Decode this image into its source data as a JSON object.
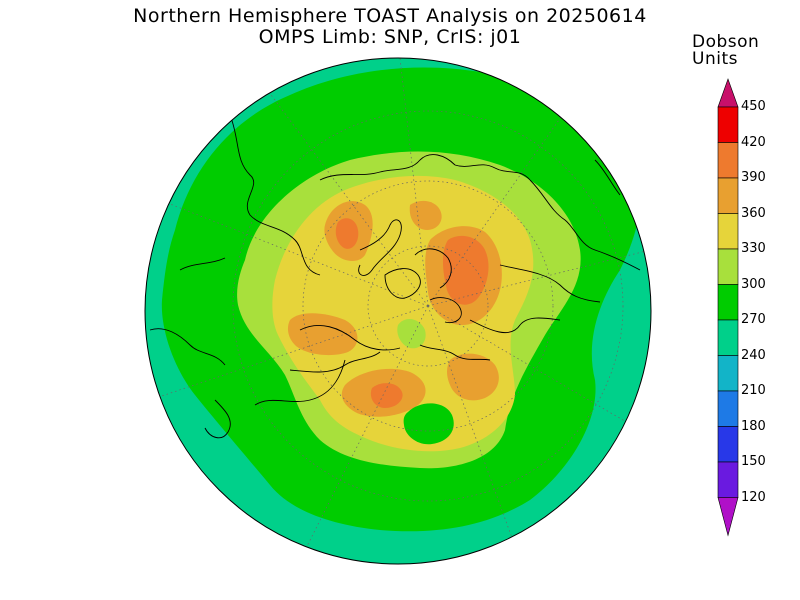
{
  "title_line1": "Northern Hemisphere TOAST Analysis on 20250614",
  "title_line2": "OMPS Limb: SNP, CrIS: j01",
  "colorbar": {
    "units_line1": "Dobson",
    "units_line2": "Units",
    "levels": [
      "450",
      "420",
      "390",
      "360",
      "330",
      "300",
      "270",
      "240",
      "210",
      "180",
      "150",
      "120"
    ],
    "colors": [
      "#ee0000",
      "#ee7a2e",
      "#e8a030",
      "#e6d43a",
      "#a8e03c",
      "#00cc00",
      "#00d08a",
      "#12b4c8",
      "#1e7ae6",
      "#2838e8",
      "#6a1ae0",
      "#9a10d8"
    ],
    "top_arrow_color": "#c8106a",
    "bottom_arrow_color": "#b010c8"
  },
  "map": {
    "projection": "north polar stereographic",
    "colors": {
      "c240": "#00d08a",
      "c270": "#00cc00",
      "c300": "#a8e03c",
      "c330": "#e6d43a",
      "c360": "#e8a030",
      "c390": "#ee7a2e"
    }
  }
}
